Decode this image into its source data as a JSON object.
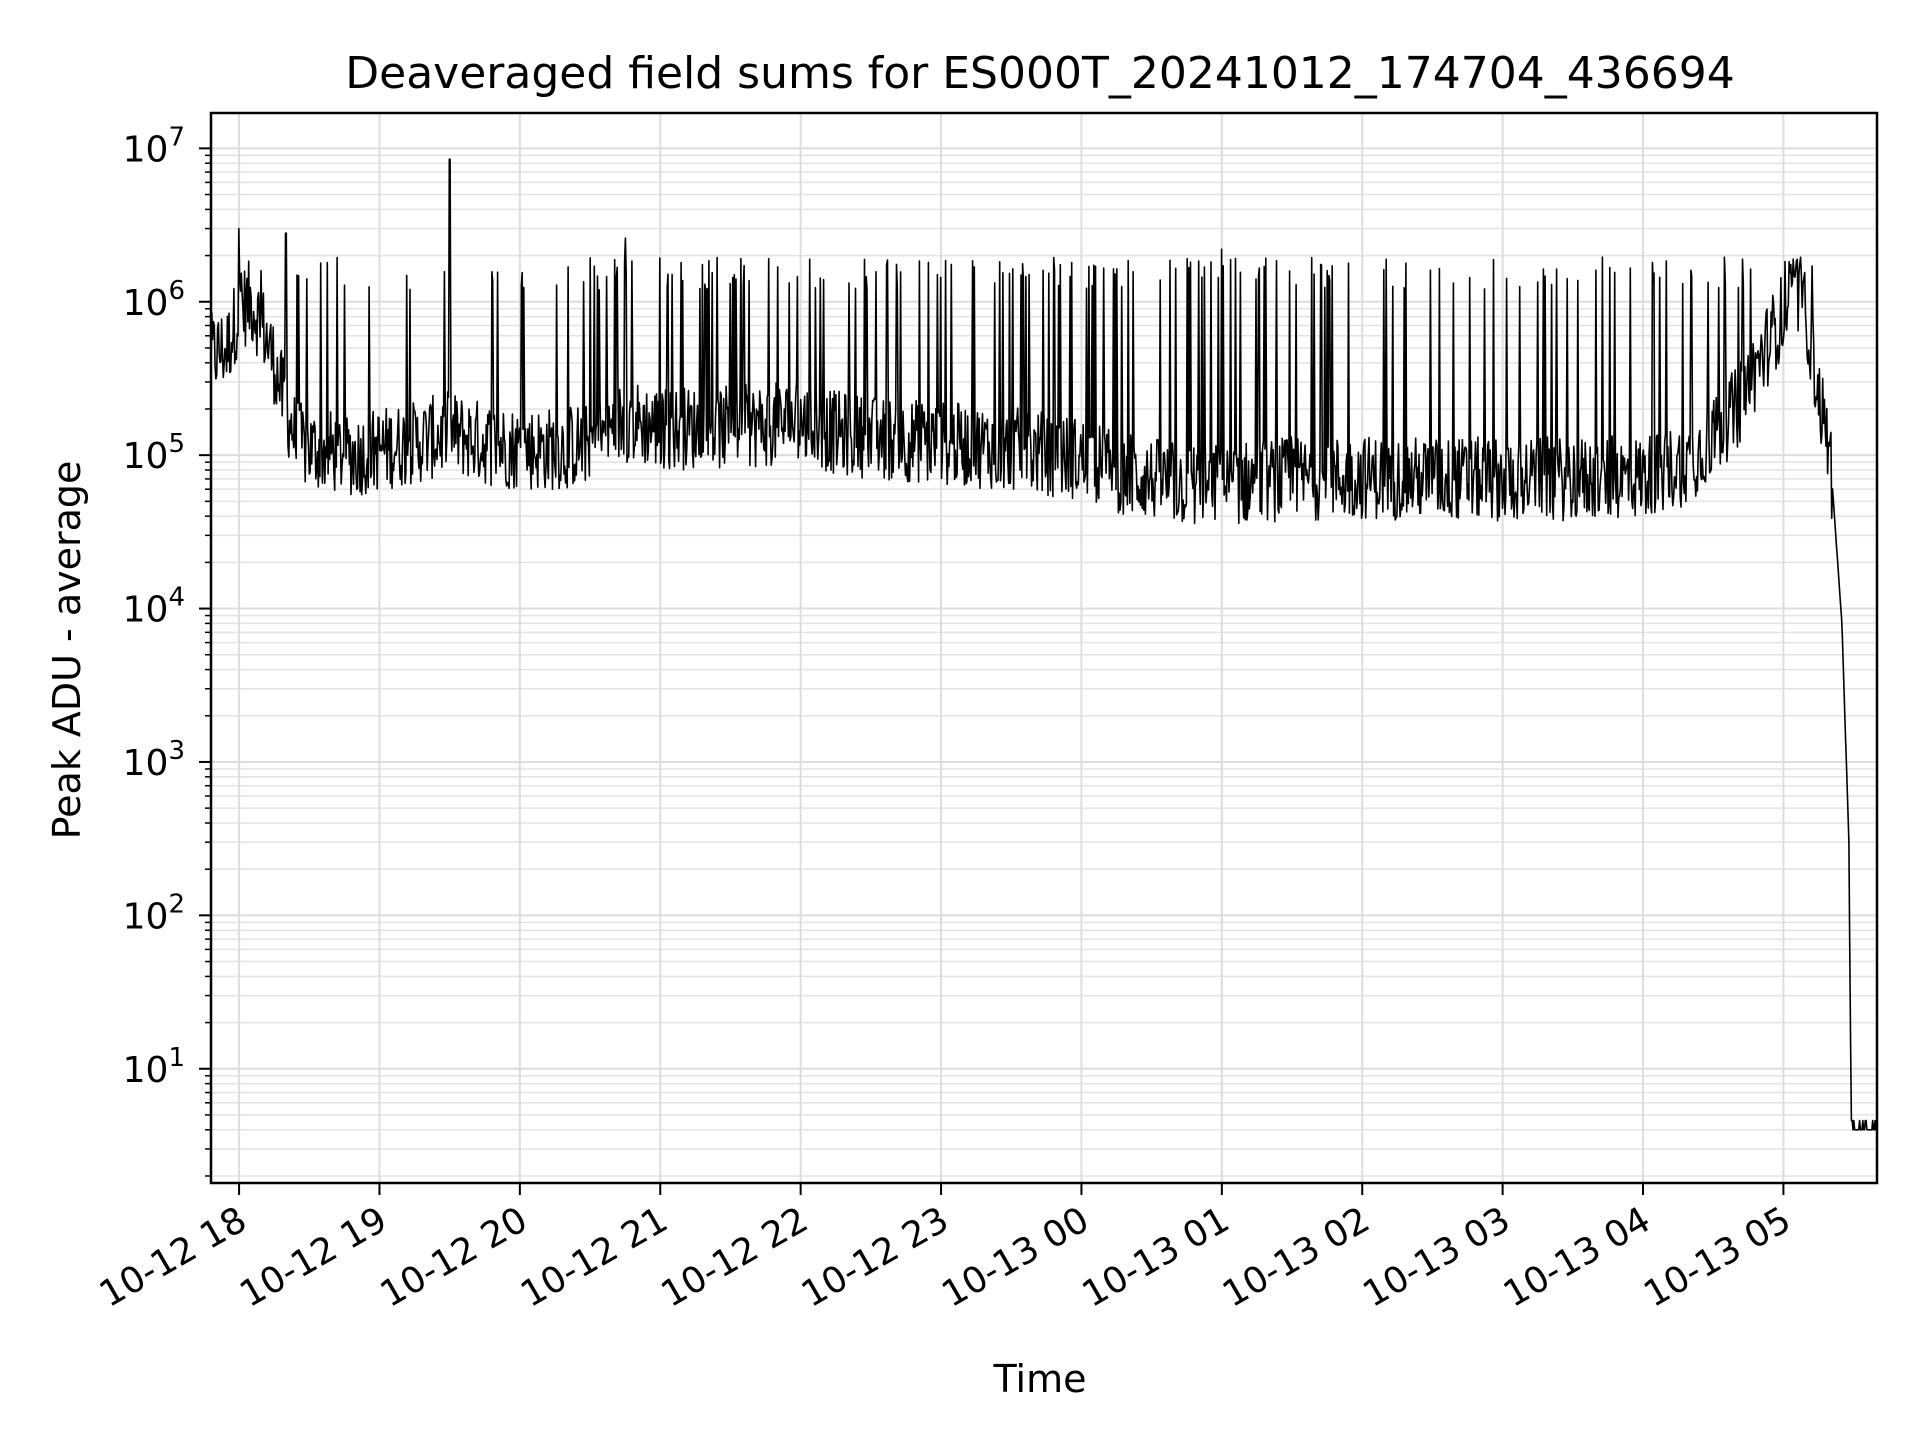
{
  "chart_data": {
    "type": "line",
    "title": "Deaveraged field sums for ES000T_20241012_174704_436694",
    "xlabel": "Time",
    "ylabel": "Peak ADU - average",
    "y_scale": "log",
    "ylim": [
      1.8,
      17000000
    ],
    "xlim": [
      "2024-10-12 17:48",
      "2024-10-13 05:40"
    ],
    "grid": true,
    "x_ticks": [
      "10-12 18",
      "10-12 19",
      "10-12 20",
      "10-12 21",
      "10-12 22",
      "10-12 23",
      "10-13 00",
      "10-13 01",
      "10-13 02",
      "10-13 03",
      "10-13 04",
      "10-13 05"
    ],
    "y_ticks": [
      {
        "base": "10",
        "exp": "1",
        "value": 10
      },
      {
        "base": "10",
        "exp": "2",
        "value": 100
      },
      {
        "base": "10",
        "exp": "3",
        "value": 1000
      },
      {
        "base": "10",
        "exp": "4",
        "value": 10000
      },
      {
        "base": "10",
        "exp": "5",
        "value": 100000
      },
      {
        "base": "10",
        "exp": "6",
        "value": 1000000
      },
      {
        "base": "10",
        "exp": "7",
        "value": 10000000
      }
    ],
    "line_color": "#000000",
    "series": [
      {
        "points": [
          [
            "2024-10-12 17:48",
            450000
          ],
          [
            "2024-10-12 17:55",
            500000
          ],
          [
            "2024-10-12 18:00",
            900000
          ],
          [
            "2024-10-12 18:05",
            1000000
          ],
          [
            "2024-10-12 18:10",
            700000
          ],
          [
            "2024-10-12 18:15",
            400000
          ],
          [
            "2024-10-12 18:20",
            200000
          ],
          [
            "2024-10-12 18:25",
            120000
          ],
          [
            "2024-10-12 18:30",
            110000
          ],
          [
            "2024-10-12 18:40",
            105000
          ],
          [
            "2024-10-12 18:50",
            100000
          ],
          [
            "2024-10-12 19:00",
            110000
          ],
          [
            "2024-10-12 19:15",
            120000
          ],
          [
            "2024-10-12 19:30",
            140000
          ],
          [
            "2024-10-12 19:45",
            120000
          ],
          [
            "2024-10-12 20:00",
            110000
          ],
          [
            "2024-10-12 20:15",
            110000
          ],
          [
            "2024-10-12 20:30",
            120000
          ],
          [
            "2024-10-12 20:45",
            170000
          ],
          [
            "2024-10-12 21:00",
            150000
          ],
          [
            "2024-10-12 21:30",
            150000
          ],
          [
            "2024-10-12 22:00",
            165000
          ],
          [
            "2024-10-12 22:15",
            140000
          ],
          [
            "2024-10-12 22:30",
            130000
          ],
          [
            "2024-10-12 23:00",
            120000
          ],
          [
            "2024-10-12 23:30",
            110000
          ],
          [
            "2024-10-13 00:00",
            95000
          ],
          [
            "2024-10-13 00:20",
            75000
          ],
          [
            "2024-10-13 00:40",
            65000
          ],
          [
            "2024-10-13 01:00",
            65000
          ],
          [
            "2024-10-13 01:30",
            70000
          ],
          [
            "2024-10-13 02:00",
            72000
          ],
          [
            "2024-10-13 02:30",
            70000
          ],
          [
            "2024-10-13 03:00",
            70000
          ],
          [
            "2024-10-13 03:30",
            70000
          ],
          [
            "2024-10-13 04:00",
            72000
          ],
          [
            "2024-10-13 04:20",
            90000
          ],
          [
            "2024-10-13 04:40",
            200000
          ],
          [
            "2024-10-13 04:55",
            600000
          ],
          [
            "2024-10-13 05:05",
            1200000
          ],
          [
            "2024-10-13 05:10",
            800000
          ],
          [
            "2024-10-13 05:15",
            250000
          ],
          [
            "2024-10-13 05:20",
            100000
          ],
          [
            "2024-10-13 05:25",
            8000
          ],
          [
            "2024-10-13 05:28",
            300
          ],
          [
            "2024-10-13 05:29",
            4
          ],
          [
            "2024-10-13 05:40",
            4
          ]
        ],
        "spikes": [
          [
            "2024-10-12 18:00",
            3000000
          ],
          [
            "2024-10-12 18:20",
            2800000
          ],
          [
            "2024-10-12 19:30",
            8500000
          ],
          [
            "2024-10-12 20:45",
            2600000
          ],
          [
            "2024-10-13 01:00",
            2200000
          ]
        ],
        "upper_envelope": 1700000
      }
    ]
  }
}
